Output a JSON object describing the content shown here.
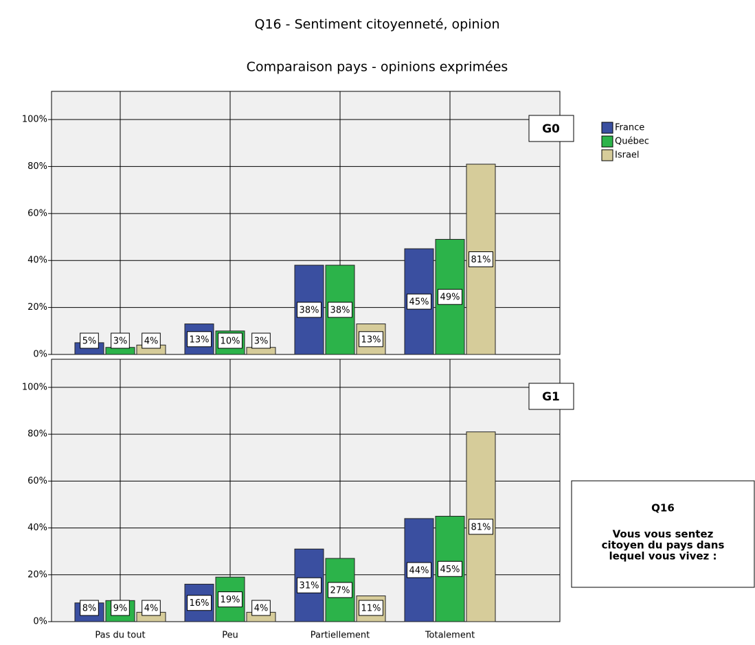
{
  "chart_data": {
    "type": "bar",
    "title": "Q16 - Sentiment citoyenneté, opinion",
    "subtitle": "Comparaison pays - opinions exprimées",
    "categories": [
      "Pas du tout",
      "Peu",
      "Partiellement",
      "Totalement"
    ],
    "series": [
      {
        "name": "France",
        "color": "#3a4fa0"
      },
      {
        "name": "Québec",
        "color": "#2cb34a"
      },
      {
        "name": "Israel",
        "color": "#d6cc9a"
      }
    ],
    "ylim": [
      0,
      112
    ],
    "yticks": [
      {
        "value": 0,
        "label": "0%"
      },
      {
        "value": 20,
        "label": "20%"
      },
      {
        "value": 40,
        "label": "40%"
      },
      {
        "value": 60,
        "label": "60%"
      },
      {
        "value": 80,
        "label": "80%"
      },
      {
        "value": 100,
        "label": "100%"
      }
    ],
    "grid": true,
    "panels": [
      {
        "label": "G0",
        "series": [
          {
            "values": [
              5,
              13,
              38,
              45
            ],
            "value_labels": [
              "5%",
              "13%",
              "38%",
              "45%"
            ]
          },
          {
            "values": [
              3,
              10,
              38,
              49
            ],
            "value_labels": [
              "3%",
              "10%",
              "38%",
              "49%"
            ]
          },
          {
            "values": [
              4,
              3,
              13,
              81
            ],
            "value_labels": [
              "4%",
              "3%",
              "13%",
              "81%"
            ]
          }
        ]
      },
      {
        "label": "G1",
        "series": [
          {
            "values": [
              8,
              16,
              31,
              44
            ],
            "value_labels": [
              "8%",
              "16%",
              "31%",
              "44%"
            ]
          },
          {
            "values": [
              9,
              19,
              27,
              45
            ],
            "value_labels": [
              "9%",
              "19%",
              "27%",
              "45%"
            ]
          },
          {
            "values": [
              4,
              4,
              11,
              81
            ],
            "value_labels": [
              "4%",
              "4%",
              "11%",
              "81%"
            ]
          }
        ]
      }
    ],
    "note": {
      "title": "Q16",
      "text": [
        "Vous vous sentez",
        "citoyen du pays dans",
        "lequel vous vivez :"
      ]
    }
  }
}
